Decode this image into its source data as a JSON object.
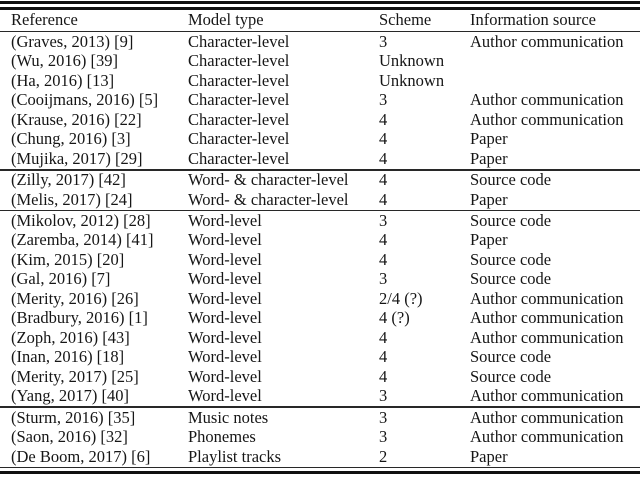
{
  "table": {
    "columns": [
      {
        "label": "Reference"
      },
      {
        "label": "Model type"
      },
      {
        "label": "Scheme"
      },
      {
        "label": "Information source"
      }
    ],
    "groups": [
      {
        "rows": [
          [
            "(Graves, 2013) [9]",
            "Character-level",
            "3",
            "Author communication"
          ],
          [
            "(Wu, 2016) [39]",
            "Character-level",
            "Unknown",
            ""
          ],
          [
            "(Ha, 2016) [13]",
            "Character-level",
            "Unknown",
            ""
          ],
          [
            "(Cooijmans, 2016) [5]",
            "Character-level",
            "3",
            "Author communication"
          ],
          [
            "(Krause, 2016) [22]",
            "Character-level",
            "4",
            "Author communication"
          ],
          [
            "(Chung, 2016) [3]",
            "Character-level",
            "4",
            "Paper"
          ],
          [
            "(Mujika, 2017) [29]",
            "Character-level",
            "4",
            "Paper"
          ]
        ]
      },
      {
        "rows": [
          [
            "(Zilly, 2017) [42]",
            "Word- & character-level",
            "4",
            "Source code"
          ],
          [
            "(Melis, 2017) [24]",
            "Word- & character-level",
            "4",
            "Paper"
          ]
        ]
      },
      {
        "rows": [
          [
            "(Mikolov, 2012) [28]",
            "Word-level",
            "3",
            "Source code"
          ],
          [
            "(Zaremba, 2014) [41]",
            "Word-level",
            "4",
            "Paper"
          ],
          [
            "(Kim, 2015) [20]",
            "Word-level",
            "4",
            "Source code"
          ],
          [
            "(Gal, 2016) [7]",
            "Word-level",
            "3",
            "Source code"
          ],
          [
            "(Merity, 2016) [26]",
            "Word-level",
            "2/4 (?)",
            "Author communication"
          ],
          [
            "(Bradbury, 2016) [1]",
            "Word-level",
            "4 (?)",
            "Author communication"
          ],
          [
            "(Zoph, 2016) [43]",
            "Word-level",
            "4",
            "Author communication"
          ],
          [
            "(Inan, 2016) [18]",
            "Word-level",
            "4",
            "Source code"
          ],
          [
            "(Merity, 2017) [25]",
            "Word-level",
            "4",
            "Source code"
          ],
          [
            "(Yang, 2017) [40]",
            "Word-level",
            "3",
            "Author communication"
          ]
        ]
      },
      {
        "rows": [
          [
            "(Sturm, 2016) [35]",
            "Music notes",
            "3",
            "Author communication"
          ],
          [
            "(Saon, 2016) [32]",
            "Phonemes",
            "3",
            "Author communication"
          ],
          [
            "(De Boom, 2017) [6]",
            "Playlist tracks",
            "2",
            "Paper"
          ]
        ]
      }
    ]
  }
}
